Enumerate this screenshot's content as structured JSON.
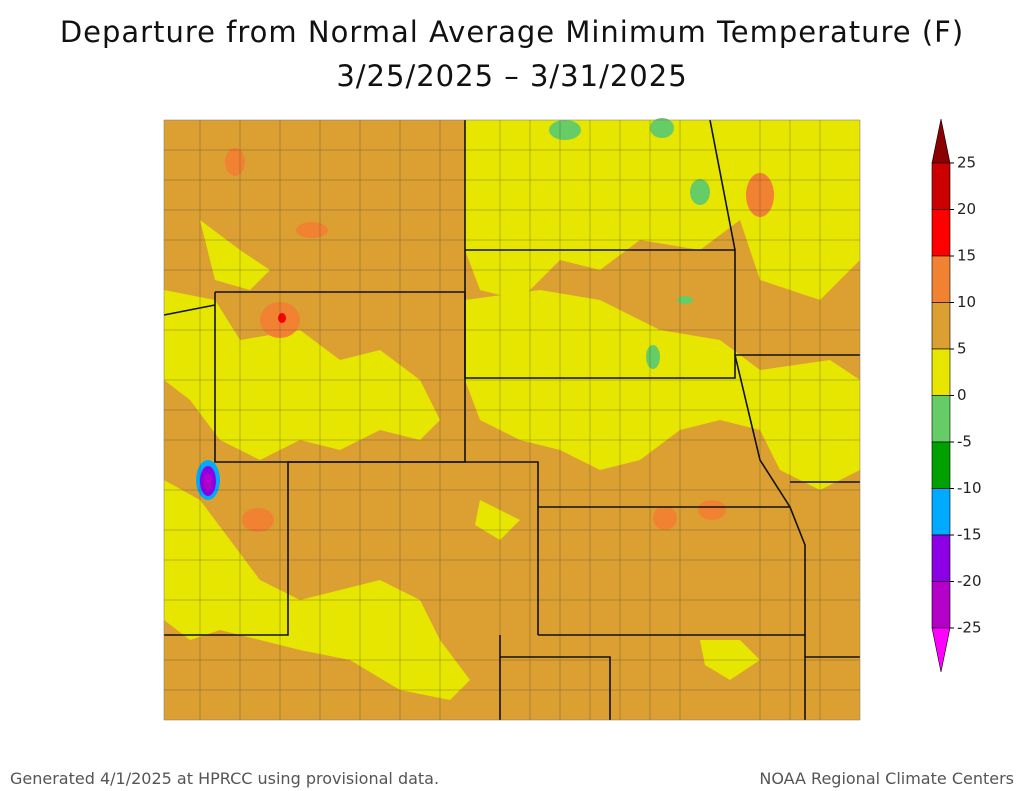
{
  "header": {
    "title": "Departure from Normal Average Minimum Temperature (F)",
    "subtitle": "3/25/2025 – 3/31/2025"
  },
  "legend": {
    "ticks": [
      25,
      20,
      15,
      10,
      5,
      0,
      -5,
      -10,
      -15,
      -20,
      -25
    ],
    "colors": [
      "#8b0000",
      "#cc0000",
      "#ff0000",
      "#f08232",
      "#dca032",
      "#e6e600",
      "#66cc66",
      "#00a000",
      "#00aaff",
      "#8c00e6",
      "#b400c8",
      "#ff00ff"
    ]
  },
  "footer": {
    "left": "Generated 4/1/2025 at HPRCC using provisional data.",
    "right": "NOAA Regional Climate Centers"
  }
}
